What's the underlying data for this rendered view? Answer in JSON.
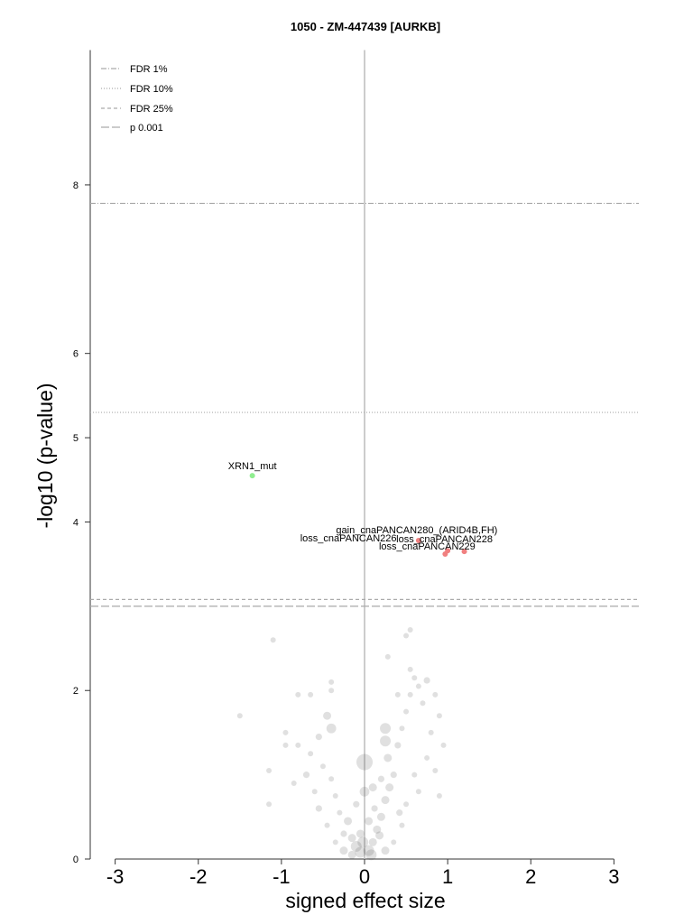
{
  "chart_data": {
    "type": "scatter",
    "title": "1050 - ZM-447439 [AURKB]",
    "xlabel": "signed effect size",
    "ylabel": "-log10 (p-value)",
    "xlim": [
      -3.3,
      3.3
    ],
    "ylim": [
      0,
      9.6
    ],
    "x_ticks": [
      -3,
      -2,
      -1,
      0,
      1,
      2,
      3
    ],
    "y_ticks": [
      0,
      2,
      4,
      5,
      6,
      8
    ],
    "grid": false,
    "legend_position": "top-left",
    "threshold_lines": [
      {
        "label": "FDR 1%",
        "y": 7.78,
        "style": "dashdot",
        "color": "#aaaaaa"
      },
      {
        "label": "FDR 10%",
        "y": 5.3,
        "style": "dotted",
        "color": "#aaaaaa"
      },
      {
        "label": "FDR 25%",
        "y": 3.08,
        "style": "dashed",
        "color": "#aaaaaa"
      },
      {
        "label": "p 0.001",
        "y": 3.0,
        "style": "longdash",
        "color": "#aaaaaa"
      }
    ],
    "highlighted_points": [
      {
        "label": "XRN1_mut",
        "x": -1.35,
        "y": 4.55,
        "color": "#90ee90"
      },
      {
        "label": "gain_cnaPANCAN280_(ARID4B,FH)",
        "x": 0.65,
        "y": 3.78,
        "color": "#f08080"
      },
      {
        "label": "loss_cnaPANCAN228",
        "x": 1.2,
        "y": 3.65,
        "color": "#f08080"
      },
      {
        "label": "loss_cnaPANCAN226",
        "x": 1.0,
        "y": 3.66,
        "color": "#f08080"
      },
      {
        "label": "loss_cnaPANCAN229",
        "x": 0.97,
        "y": 3.62,
        "color": "#f08080"
      }
    ],
    "background_points": [
      {
        "x": -1.1,
        "y": 2.6,
        "size": 1
      },
      {
        "x": -1.5,
        "y": 1.7,
        "size": 1
      },
      {
        "x": -1.15,
        "y": 0.65,
        "size": 1
      },
      {
        "x": -0.4,
        "y": 2.1,
        "size": 1
      },
      {
        "x": -0.8,
        "y": 1.95,
        "size": 1
      },
      {
        "x": -0.65,
        "y": 1.95,
        "size": 1
      },
      {
        "x": -0.45,
        "y": 1.7,
        "size": 1.5
      },
      {
        "x": -0.55,
        "y": 1.45,
        "size": 1.2
      },
      {
        "x": -0.8,
        "y": 1.35,
        "size": 1
      },
      {
        "x": -0.95,
        "y": 1.5,
        "size": 1
      },
      {
        "x": -0.95,
        "y": 1.35,
        "size": 1
      },
      {
        "x": -0.65,
        "y": 1.25,
        "size": 1
      },
      {
        "x": -0.7,
        "y": 1.0,
        "size": 1.2
      },
      {
        "x": -0.5,
        "y": 1.1,
        "size": 1
      },
      {
        "x": -1.15,
        "y": 1.05,
        "size": 1
      },
      {
        "x": -0.85,
        "y": 0.9,
        "size": 1
      },
      {
        "x": -0.6,
        "y": 0.8,
        "size": 1
      },
      {
        "x": -0.4,
        "y": 0.95,
        "size": 1
      },
      {
        "x": -0.35,
        "y": 0.75,
        "size": 1
      },
      {
        "x": -0.55,
        "y": 0.6,
        "size": 1.2
      },
      {
        "x": -0.3,
        "y": 0.55,
        "size": 1
      },
      {
        "x": -0.2,
        "y": 0.45,
        "size": 1.5
      },
      {
        "x": -0.45,
        "y": 0.4,
        "size": 1
      },
      {
        "x": -0.25,
        "y": 0.3,
        "size": 1.2
      },
      {
        "x": -0.15,
        "y": 0.25,
        "size": 1.5
      },
      {
        "x": -0.35,
        "y": 0.2,
        "size": 1
      },
      {
        "x": -0.1,
        "y": 0.15,
        "size": 2
      },
      {
        "x": -0.05,
        "y": 0.08,
        "size": 2
      },
      {
        "x": -0.15,
        "y": 0.05,
        "size": 1.5
      },
      {
        "x": 0.05,
        "y": 0.1,
        "size": 2
      },
      {
        "x": 0.1,
        "y": 0.2,
        "size": 1.5
      },
      {
        "x": 0.15,
        "y": 0.35,
        "size": 1.5
      },
      {
        "x": 0.2,
        "y": 0.5,
        "size": 1.5
      },
      {
        "x": 0.25,
        "y": 0.7,
        "size": 1.5
      },
      {
        "x": 0.3,
        "y": 0.85,
        "size": 1.5
      },
      {
        "x": 0.35,
        "y": 1.0,
        "size": 1.2
      },
      {
        "x": 0.28,
        "y": 1.2,
        "size": 1.5
      },
      {
        "x": 0.4,
        "y": 1.35,
        "size": 1.2
      },
      {
        "x": 0.45,
        "y": 1.55,
        "size": 1
      },
      {
        "x": 0.5,
        "y": 1.75,
        "size": 1
      },
      {
        "x": 0.55,
        "y": 1.95,
        "size": 1
      },
      {
        "x": 0.6,
        "y": 2.15,
        "size": 1
      },
      {
        "x": 0.65,
        "y": 2.05,
        "size": 1
      },
      {
        "x": 0.75,
        "y": 2.12,
        "size": 1.2
      },
      {
        "x": 0.55,
        "y": 2.25,
        "size": 1
      },
      {
        "x": 0.7,
        "y": 1.85,
        "size": 1
      },
      {
        "x": 0.85,
        "y": 1.95,
        "size": 1
      },
      {
        "x": 0.9,
        "y": 1.7,
        "size": 1
      },
      {
        "x": 0.8,
        "y": 1.5,
        "size": 1
      },
      {
        "x": 0.95,
        "y": 1.35,
        "size": 1
      },
      {
        "x": 0.75,
        "y": 1.2,
        "size": 1
      },
      {
        "x": 0.85,
        "y": 1.05,
        "size": 1
      },
      {
        "x": 0.6,
        "y": 1.0,
        "size": 1
      },
      {
        "x": 0.65,
        "y": 0.8,
        "size": 1
      },
      {
        "x": 0.5,
        "y": 0.65,
        "size": 1
      },
      {
        "x": 0.45,
        "y": 0.4,
        "size": 1
      },
      {
        "x": 0.35,
        "y": 0.2,
        "size": 1
      },
      {
        "x": 0.25,
        "y": 0.1,
        "size": 1.5
      },
      {
        "x": 0.5,
        "y": 2.65,
        "size": 1
      },
      {
        "x": 0.55,
        "y": 2.72,
        "size": 1
      },
      {
        "x": 0.28,
        "y": 2.4,
        "size": 1
      },
      {
        "x": 0.4,
        "y": 1.95,
        "size": 1
      },
      {
        "x": -0.4,
        "y": 2.0,
        "size": 1
      },
      {
        "x": 0.0,
        "y": 1.15,
        "size": 3
      },
      {
        "x": 0.25,
        "y": 1.55,
        "size": 2
      },
      {
        "x": 0.25,
        "y": 1.4,
        "size": 2
      },
      {
        "x": 0.1,
        "y": 0.85,
        "size": 1.5
      },
      {
        "x": 0.0,
        "y": 0.8,
        "size": 1.8
      },
      {
        "x": -0.4,
        "y": 1.55,
        "size": 1.8
      },
      {
        "x": 0.9,
        "y": 0.75,
        "size": 1
      },
      {
        "x": 0.05,
        "y": 0.45,
        "size": 1.5
      },
      {
        "x": -0.05,
        "y": 0.3,
        "size": 1.5
      },
      {
        "x": 0.18,
        "y": 0.28,
        "size": 1.5
      },
      {
        "x": -0.25,
        "y": 0.1,
        "size": 1.5
      },
      {
        "x": 0.12,
        "y": 0.6,
        "size": 1.2
      },
      {
        "x": 0.42,
        "y": 0.55,
        "size": 1.2
      },
      {
        "x": 0.2,
        "y": 0.95,
        "size": 1.2
      },
      {
        "x": -0.1,
        "y": 0.65,
        "size": 1.2
      },
      {
        "x": 0.08,
        "y": 0.05,
        "size": 2
      },
      {
        "x": -0.02,
        "y": 0.2,
        "size": 2
      }
    ]
  }
}
